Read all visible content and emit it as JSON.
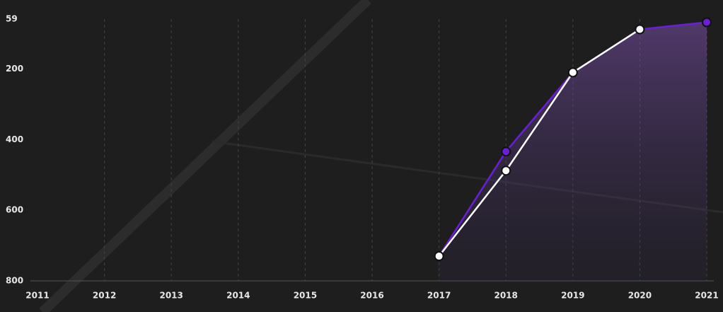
{
  "chart_data": {
    "type": "line",
    "categories": [
      "2011",
      "2012",
      "2013",
      "2014",
      "2015",
      "2016",
      "2017",
      "2018",
      "2019",
      "2020",
      "2021"
    ],
    "series": [
      {
        "color": "#6a1fd6",
        "values": [
          null,
          null,
          null,
          null,
          null,
          null,
          730,
          434,
          210,
          88,
          68
        ]
      },
      {
        "color": "#ffffff",
        "values": [
          null,
          null,
          null,
          null,
          null,
          null,
          730,
          488,
          210,
          88,
          null
        ]
      }
    ],
    "ylim": [
      800,
      59
    ],
    "yticks": [
      59,
      200,
      400,
      600,
      800
    ],
    "grid": true
  }
}
